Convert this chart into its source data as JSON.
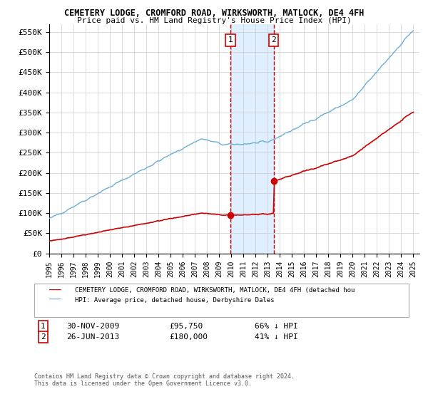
{
  "title": "CEMETERY LODGE, CROMFORD ROAD, WIRKSWORTH, MATLOCK, DE4 4FH",
  "subtitle": "Price paid vs. HM Land Registry's House Price Index (HPI)",
  "hpi_color": "#6baed6",
  "price_color": "#cc0000",
  "marker_color": "#cc0000",
  "dashed_line_color": "#cc0000",
  "highlight_bg": "#ddeeff",
  "yticks": [
    0,
    50000,
    100000,
    150000,
    200000,
    250000,
    300000,
    350000,
    400000,
    450000,
    500000,
    550000
  ],
  "ytick_labels": [
    "£0",
    "£50K",
    "£100K",
    "£150K",
    "£200K",
    "£250K",
    "£300K",
    "£350K",
    "£400K",
    "£450K",
    "£500K",
    "£550K"
  ],
  "sale1_t": 2009.92,
  "sale1_price": 95750,
  "sale2_t": 2013.49,
  "sale2_price": 180000,
  "legend_label_red": "CEMETERY LODGE, CROMFORD ROAD, WIRKSWORTH, MATLOCK, DE4 4FH (detached hou",
  "legend_label_blue": "HPI: Average price, detached house, Derbyshire Dales",
  "row1_num": "1",
  "row1_date": "30-NOV-2009",
  "row1_price": "£95,750",
  "row1_hpi": "66% ↓ HPI",
  "row2_num": "2",
  "row2_date": "26-JUN-2013",
  "row2_price": "£180,000",
  "row2_hpi": "41% ↓ HPI",
  "footer": "Contains HM Land Registry data © Crown copyright and database right 2024.\nThis data is licensed under the Open Government Licence v3.0.",
  "xlim_start": 1995.0,
  "xlim_end": 2025.5,
  "ylim_max": 570000
}
